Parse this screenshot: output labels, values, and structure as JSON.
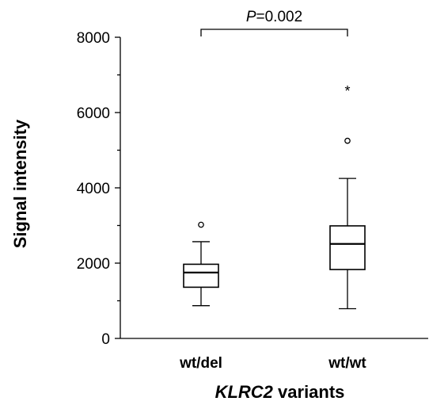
{
  "panel_label": "",
  "chart_data": {
    "type": "boxplot",
    "ylabel": "Signal intensity",
    "xlabel_italic": "KLRC2",
    "xlabel_rest": " variants",
    "ylim": [
      0,
      8000
    ],
    "yticks": [
      0,
      2000,
      4000,
      6000,
      8000
    ],
    "ytick_labels": [
      "0",
      "2000",
      "4000",
      "6000",
      "8000"
    ],
    "categories": [
      "wt/del",
      "wt/wt"
    ],
    "groups": [
      {
        "label": "wt/del",
        "min": 870,
        "q1": 1360,
        "median": 1750,
        "q3": 1970,
        "max": 2570,
        "outliers": [
          3020
        ],
        "extremes": []
      },
      {
        "label": "wt/wt",
        "min": 790,
        "q1": 1830,
        "median": 2510,
        "q3": 2990,
        "max": 4250,
        "outliers": [
          5250
        ],
        "extremes": [
          6630
        ]
      }
    ],
    "significance": {
      "p_italic": "P",
      "value": "=0.002",
      "between": [
        "wt/del",
        "wt/wt"
      ]
    },
    "grid": false,
    "legend": "none"
  }
}
